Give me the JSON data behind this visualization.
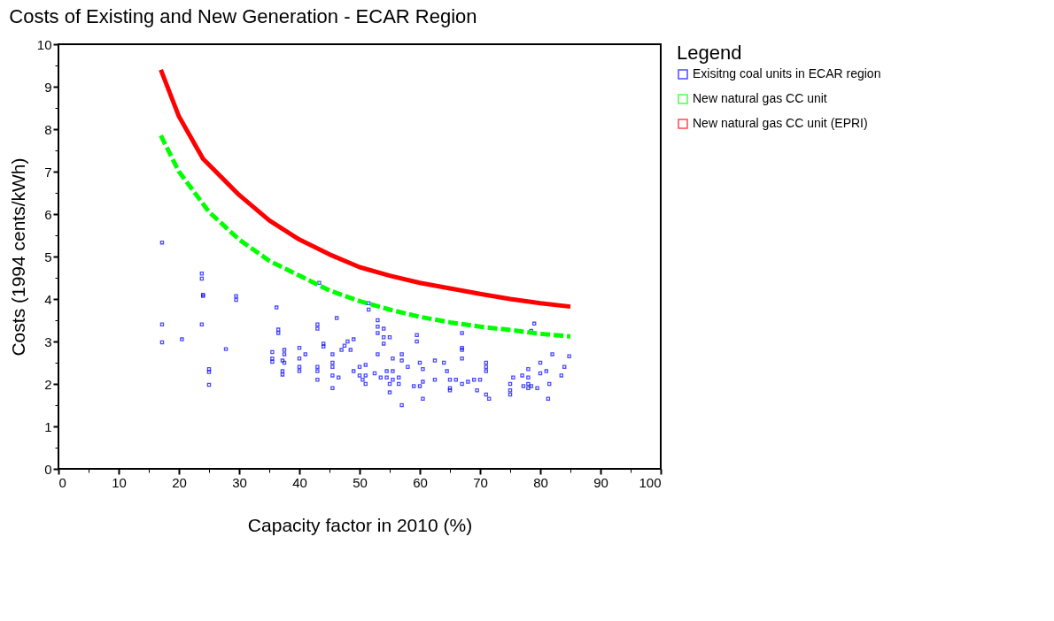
{
  "chart_data": {
    "type": "scatter",
    "title": "Costs of Existing and New Generation - ECAR Region",
    "xlabel": "Capacity factor in 2010 (%)",
    "ylabel": "Costs (1994 cents/kWh)",
    "legend_title": "Legend",
    "legend": "right",
    "grid": false,
    "marker": "square",
    "xlim": [
      0,
      100
    ],
    "xticks": [
      0,
      {
        "value": 5,
        "label": null
      },
      10,
      {
        "value": 15,
        "label": null
      },
      20,
      {
        "value": 25,
        "label": null
      },
      30,
      {
        "value": 35,
        "label": null
      },
      40,
      {
        "value": 45,
        "label": null
      },
      50,
      {
        "value": 55,
        "label": null
      },
      60,
      {
        "value": 65,
        "label": null
      },
      70,
      {
        "value": 75,
        "label": null
      },
      80,
      {
        "value": 85,
        "label": null
      },
      90,
      {
        "value": 95,
        "label": null
      },
      100
    ],
    "ylim": [
      0,
      10
    ],
    "yticks": [
      0,
      {
        "value": 0.5,
        "label": null
      },
      1,
      {
        "value": 1.5,
        "label": null
      },
      2,
      {
        "value": 2.5,
        "label": null
      },
      3,
      {
        "value": 3.5,
        "label": null
      },
      4,
      {
        "value": 4.5,
        "label": null
      },
      5,
      {
        "value": 5.5,
        "label": null
      },
      6,
      {
        "value": 6.5,
        "label": null
      },
      7,
      {
        "value": 7.5,
        "label": null
      },
      8,
      {
        "value": 8.5,
        "label": null
      },
      9,
      {
        "value": 9.5,
        "label": null
      },
      10
    ],
    "series": [
      {
        "name": "Exisitng coal units in ECAR region",
        "type": "scatter",
        "color": "#0000ff",
        "x": [
          17.2,
          17.2,
          17.2,
          20.5,
          23.8,
          23.8,
          24,
          24,
          23.8,
          25,
          25,
          25,
          27.8,
          29.5,
          29.5,
          35.5,
          35.5,
          35.5,
          36.2,
          36.5,
          36.5,
          37.2,
          37.5,
          37.5,
          37.5,
          37.2,
          37.2,
          40,
          40,
          40,
          40,
          41,
          43,
          43,
          43.3,
          43,
          43,
          43,
          44,
          44,
          45.5,
          45.5,
          45.5,
          45.5,
          45.5,
          46.2,
          46.5,
          47,
          47.5,
          48,
          48.5,
          49,
          49,
          50,
          50,
          50.5,
          51,
          51,
          51.5,
          51.5,
          51,
          52.5,
          53,
          53,
          53,
          53,
          53.5,
          54,
          54,
          54,
          54.5,
          54.5,
          55,
          55,
          55.5,
          55.5,
          55,
          55.5,
          56.5,
          56.5,
          57,
          57,
          57,
          58,
          59,
          59.5,
          59.5,
          60,
          60,
          60.5,
          60.5,
          60.5,
          62.5,
          62.5,
          64,
          64.5,
          65,
          65,
          65,
          66,
          67,
          67,
          67,
          67,
          67,
          68,
          69,
          69.5,
          70,
          71,
          71,
          71,
          71,
          71.5,
          75,
          75,
          75,
          75.5,
          77,
          77.2,
          78,
          78,
          78,
          78,
          78.5,
          78.5,
          79,
          79.5,
          80,
          80,
          81,
          81.3,
          81.5,
          82,
          83.5,
          84,
          84.8
        ],
        "values": [
          5.33,
          3.4,
          2.98,
          3.05,
          4.6,
          4.48,
          4.1,
          4.07,
          3.4,
          2.35,
          2.28,
          1.98,
          2.82,
          4.07,
          3.98,
          2.75,
          2.6,
          2.52,
          3.8,
          3.28,
          3.2,
          2.55,
          2.8,
          2.7,
          2.5,
          2.3,
          2.22,
          2.85,
          2.6,
          2.4,
          2.3,
          2.7,
          3.4,
          3.3,
          4.38,
          2.4,
          2.3,
          2.1,
          2.95,
          2.88,
          2.7,
          2.5,
          2.4,
          2.2,
          1.9,
          3.55,
          2.15,
          2.8,
          2.9,
          3.0,
          2.8,
          3.05,
          2.3,
          2.4,
          2.2,
          2.1,
          2.45,
          2.2,
          3.9,
          3.75,
          2.0,
          2.25,
          3.5,
          3.35,
          3.2,
          2.7,
          2.15,
          3.3,
          3.1,
          2.95,
          2.3,
          2.15,
          2.0,
          1.8,
          2.3,
          2.1,
          3.1,
          2.6,
          2.15,
          2.0,
          1.5,
          2.7,
          2.55,
          2.4,
          1.95,
          3.15,
          3.0,
          2.5,
          1.95,
          2.35,
          2.05,
          1.65,
          2.55,
          2.1,
          2.5,
          2.3,
          2.1,
          1.9,
          1.85,
          2.1,
          3.2,
          2.85,
          2.8,
          2.6,
          2.0,
          2.05,
          2.1,
          1.85,
          2.1,
          2.5,
          2.4,
          2.3,
          1.75,
          1.65,
          2.0,
          1.85,
          1.75,
          2.15,
          2.2,
          1.95,
          2.35,
          2.15,
          2.0,
          1.9,
          3.25,
          1.95,
          3.42,
          1.9,
          2.5,
          2.25,
          2.3,
          1.65,
          2.0,
          2.7,
          2.2,
          2.4,
          2.65
        ]
      },
      {
        "name": "New natural gas CC unit",
        "type": "line",
        "marker": "none",
        "line_style": "dashed",
        "color": "#00ff00",
        "x": [
          17,
          20,
          25,
          30,
          35,
          40,
          45,
          50,
          55,
          60,
          65,
          70,
          75,
          80,
          85
        ],
        "values": [
          7.85,
          7.0,
          6.05,
          5.4,
          4.9,
          4.55,
          4.2,
          3.95,
          3.75,
          3.58,
          3.45,
          3.35,
          3.27,
          3.18,
          3.12
        ]
      },
      {
        "name": "New natural gas CC unit (EPRI)",
        "type": "line",
        "marker": "none",
        "line_style": "solid",
        "color": "#ff0000",
        "x": [
          17,
          20,
          24,
          30,
          35,
          40,
          45,
          50,
          55,
          60,
          65,
          70,
          75,
          80,
          85
        ],
        "values": [
          9.4,
          8.3,
          7.3,
          6.45,
          5.85,
          5.4,
          5.05,
          4.75,
          4.55,
          4.38,
          4.25,
          4.12,
          4.0,
          3.9,
          3.82
        ]
      }
    ]
  }
}
